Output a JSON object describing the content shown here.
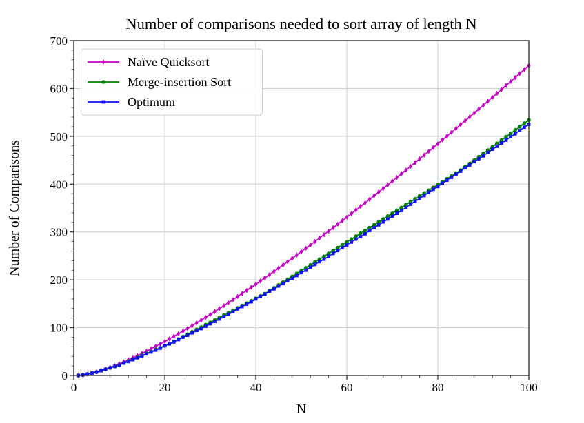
{
  "figure": {
    "background": "#ffffff"
  },
  "chart_data": {
    "type": "line",
    "title": "Number of comparisons needed to sort array of length N",
    "xlabel": "N",
    "ylabel": "Number of Comparisons",
    "xlim": [
      0,
      100
    ],
    "ylim": [
      0,
      700
    ],
    "xticks": [
      0,
      20,
      40,
      60,
      80,
      100
    ],
    "yticks": [
      0,
      100,
      200,
      300,
      400,
      500,
      600,
      700
    ],
    "xtick_minor_step": 4,
    "ytick_minor_step": 20,
    "grid": true,
    "grid_color": "#cccccc",
    "axis_color": "#262626",
    "legend": {
      "position": "upper-left",
      "border_color": "#cccccc",
      "background": "#ffffff"
    },
    "x": [
      1,
      2,
      3,
      4,
      5,
      6,
      7,
      8,
      9,
      10,
      11,
      12,
      13,
      14,
      15,
      16,
      17,
      18,
      19,
      20,
      21,
      22,
      23,
      24,
      25,
      26,
      27,
      28,
      29,
      30,
      31,
      32,
      33,
      34,
      35,
      36,
      37,
      38,
      39,
      40,
      41,
      42,
      43,
      44,
      45,
      46,
      47,
      48,
      49,
      50,
      51,
      52,
      53,
      54,
      55,
      56,
      57,
      58,
      59,
      60,
      61,
      62,
      63,
      64,
      65,
      66,
      67,
      68,
      69,
      70,
      71,
      72,
      73,
      74,
      75,
      76,
      77,
      78,
      79,
      80,
      81,
      82,
      83,
      84,
      85,
      86,
      87,
      88,
      89,
      90,
      91,
      92,
      93,
      94,
      95,
      96,
      97,
      98,
      99,
      100
    ],
    "series": [
      {
        "name": "Naïve Quicksort",
        "id": "naive-quicksort",
        "color": "#c400c4",
        "marker": "thin-diamond",
        "values": [
          0,
          1,
          2.7,
          4.8,
          7.4,
          10.3,
          13.5,
          16.9,
          20.6,
          24.4,
          28.5,
          32.7,
          37,
          41.5,
          46.2,
          50.9,
          55.8,
          60.8,
          65.9,
          71.1,
          76.4,
          81.8,
          87.2,
          92.8,
          98.4,
          104.1,
          109.9,
          115.8,
          121.7,
          127.7,
          133.7,
          139.9,
          146,
          152.3,
          158.6,
          164.9,
          171.3,
          177.8,
          184.3,
          190.8,
          197.4,
          204.1,
          210.8,
          217.5,
          224.3,
          231.2,
          238,
          245,
          251.9,
          258.9,
          266,
          273,
          280.1,
          287.3,
          294.5,
          301.7,
          309,
          316.3,
          323.6,
          330.9,
          338.3,
          345.8,
          353.2,
          360.7,
          368.2,
          375.8,
          383.4,
          391,
          398.6,
          406.3,
          414,
          421.7,
          429.4,
          437.2,
          445,
          452.8,
          460.7,
          468.6,
          476.5,
          484.4,
          492.4,
          500.3,
          508.3,
          516.4,
          524.4,
          532.5,
          540.6,
          548.7,
          556.9,
          565,
          573.2,
          581.4,
          589.7,
          597.9,
          606.2,
          614.5,
          622.8,
          631.1,
          639.5,
          647.9
        ]
      },
      {
        "name": "Merge-insertion Sort",
        "id": "merge-insertion-sort",
        "color": "#007f00",
        "marker": "circle",
        "values": [
          0,
          1,
          3,
          5,
          7,
          10,
          13,
          16,
          19,
          22,
          26,
          30,
          34,
          38,
          42,
          46,
          50,
          54,
          58,
          62,
          66,
          71,
          76,
          81,
          86,
          91,
          96,
          101,
          106,
          111,
          116,
          121,
          126,
          131,
          136,
          141,
          146,
          151,
          156,
          161,
          166,
          171,
          177,
          183,
          189,
          195,
          201,
          207,
          213,
          219,
          225,
          231,
          237,
          243,
          249,
          255,
          261,
          267,
          273,
          279,
          285,
          291,
          297,
          303,
          309,
          315,
          321,
          327,
          333,
          339,
          345,
          351,
          357,
          363,
          369,
          375,
          381,
          387,
          393,
          399,
          405,
          411,
          417,
          423,
          429,
          436,
          443,
          450,
          457,
          464,
          471,
          478,
          485,
          492,
          499,
          506,
          513,
          520,
          527,
          534
        ]
      },
      {
        "name": "Optimum",
        "id": "optimum",
        "color": "#1212ee",
        "marker": "square",
        "values": [
          0,
          1,
          3,
          5,
          7,
          10,
          13,
          16,
          19,
          22,
          26,
          29,
          33,
          37,
          41,
          45,
          49,
          53,
          57,
          62,
          66,
          70,
          75,
          80,
          84,
          89,
          94,
          98,
          103,
          108,
          113,
          118,
          123,
          128,
          133,
          139,
          144,
          149,
          154,
          160,
          165,
          170,
          176,
          181,
          187,
          192,
          198,
          203,
          209,
          215,
          220,
          226,
          232,
          238,
          243,
          249,
          255,
          261,
          267,
          273,
          279,
          285,
          290,
          296,
          303,
          309,
          315,
          321,
          327,
          333,
          339,
          345,
          351,
          358,
          364,
          370,
          376,
          383,
          389,
          395,
          402,
          408,
          414,
          421,
          427,
          434,
          440,
          447,
          453,
          459,
          466,
          473,
          479,
          486,
          492,
          499,
          505,
          512,
          519,
          525
        ]
      }
    ]
  }
}
